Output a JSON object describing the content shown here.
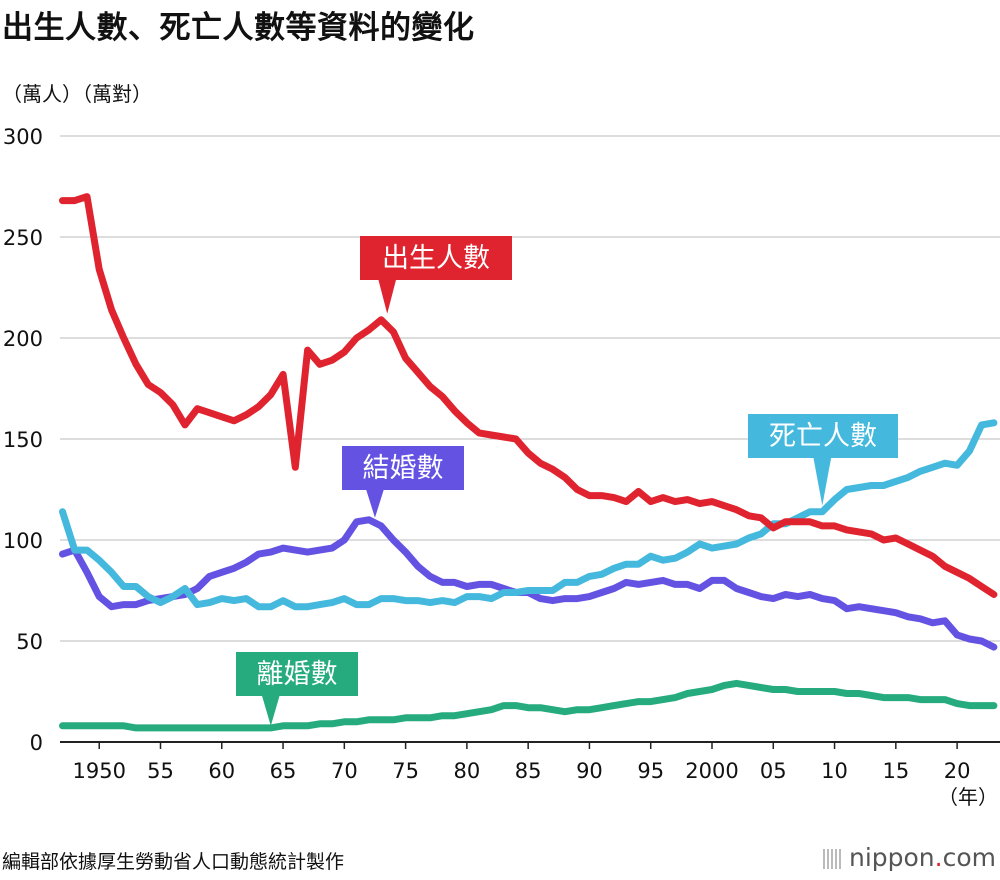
{
  "title": "出生人數、死亡人數等資料的變化",
  "units_label": "（萬人）（萬對）",
  "footer": "編輯部依據厚生勞動省人口動態統計製作",
  "logo": {
    "name": "nippon",
    "dot": ".",
    "suffix": "com",
    "icon": "nippon-logo-mark"
  },
  "chart_data": {
    "type": "line",
    "ylim": [
      0,
      300
    ],
    "yticks": [
      "300",
      "250",
      "200",
      "150",
      "100",
      "50",
      "0"
    ],
    "ytick_values": [
      300,
      250,
      200,
      150,
      100,
      50,
      0
    ],
    "xlim": [
      1946.8,
      2023.5
    ],
    "xticks": [
      {
        "label": "1950",
        "year": 1950
      },
      {
        "label": "55",
        "year": 1955
      },
      {
        "label": "60",
        "year": 1960
      },
      {
        "label": "65",
        "year": 1965
      },
      {
        "label": "70",
        "year": 1970
      },
      {
        "label": "75",
        "year": 1975
      },
      {
        "label": "80",
        "year": 1980
      },
      {
        "label": "85",
        "year": 1985
      },
      {
        "label": "90",
        "year": 1990
      },
      {
        "label": "95",
        "year": 1995
      },
      {
        "label": "2000",
        "year": 2000
      },
      {
        "label": "05",
        "year": 2005
      },
      {
        "label": "10",
        "year": 2010
      },
      {
        "label": "15",
        "year": 2015
      },
      {
        "label": "20",
        "year": 2020
      }
    ],
    "xunit": "（年）",
    "x": [
      1947,
      1948,
      1949,
      1950,
      1951,
      1952,
      1953,
      1954,
      1955,
      1956,
      1957,
      1958,
      1959,
      1960,
      1961,
      1962,
      1963,
      1964,
      1965,
      1966,
      1967,
      1968,
      1969,
      1970,
      1971,
      1972,
      1973,
      1974,
      1975,
      1976,
      1977,
      1978,
      1979,
      1980,
      1981,
      1982,
      1983,
      1984,
      1985,
      1986,
      1987,
      1988,
      1989,
      1990,
      1991,
      1992,
      1993,
      1994,
      1995,
      1996,
      1997,
      1998,
      1999,
      2000,
      2001,
      2002,
      2003,
      2004,
      2005,
      2006,
      2007,
      2008,
      2009,
      2010,
      2011,
      2012,
      2013,
      2014,
      2015,
      2016,
      2017,
      2018,
      2019,
      2020,
      2021,
      2022,
      2023
    ],
    "series": [
      {
        "name": "出生人數",
        "color": "#e0242f",
        "values": [
          268,
          268,
          270,
          234,
          214,
          200,
          187,
          177,
          173,
          167,
          157,
          165,
          163,
          161,
          159,
          162,
          166,
          172,
          182,
          136,
          194,
          187,
          189,
          193,
          200,
          204,
          209,
          203,
          190,
          183,
          176,
          171,
          164,
          158,
          153,
          152,
          151,
          150,
          143,
          138,
          135,
          131,
          125,
          122,
          122,
          121,
          119,
          124,
          119,
          121,
          119,
          120,
          118,
          119,
          117,
          115,
          112,
          111,
          106,
          109,
          109,
          109,
          107,
          107,
          105,
          104,
          103,
          100,
          101,
          98,
          95,
          92,
          87,
          84,
          81,
          77,
          73
        ]
      },
      {
        "name": "死亡人數",
        "color": "#45b9dd",
        "values": [
          114,
          95,
          95,
          90,
          84,
          77,
          77,
          72,
          69,
          72,
          76,
          68,
          69,
          71,
          70,
          71,
          67,
          67,
          70,
          67,
          67,
          68,
          69,
          71,
          68,
          68,
          71,
          71,
          70,
          70,
          69,
          70,
          69,
          72,
          72,
          71,
          74,
          74,
          75,
          75,
          75,
          79,
          79,
          82,
          83,
          86,
          88,
          88,
          92,
          90,
          91,
          94,
          98,
          96,
          97,
          98,
          101,
          103,
          108,
          108,
          111,
          114,
          114,
          120,
          125,
          126,
          127,
          127,
          129,
          131,
          134,
          136,
          138,
          137,
          144,
          157,
          158
        ]
      },
      {
        "name": "結婚數",
        "color": "#6453e2",
        "values": [
          93,
          95,
          84,
          72,
          67,
          68,
          68,
          70,
          71,
          72,
          73,
          76,
          82,
          84,
          86,
          89,
          93,
          94,
          96,
          95,
          94,
          95,
          96,
          100,
          109,
          110,
          107,
          100,
          94,
          87,
          82,
          79,
          79,
          77,
          78,
          78,
          76,
          74,
          74,
          71,
          70,
          71,
          71,
          72,
          74,
          76,
          79,
          78,
          79,
          80,
          78,
          78,
          76,
          80,
          80,
          76,
          74,
          72,
          71,
          73,
          72,
          73,
          71,
          70,
          66,
          67,
          66,
          65,
          64,
          62,
          61,
          59,
          60,
          53,
          51,
          50,
          47
        ]
      },
      {
        "name": "離婚數",
        "color": "#26ab7f",
        "values": [
          8,
          8,
          8,
          8,
          8,
          8,
          7,
          7,
          7,
          7,
          7,
          7,
          7,
          7,
          7,
          7,
          7,
          7,
          8,
          8,
          8,
          9,
          9,
          10,
          10,
          11,
          11,
          11,
          12,
          12,
          12,
          13,
          13,
          14,
          15,
          16,
          18,
          18,
          17,
          17,
          16,
          15,
          16,
          16,
          17,
          18,
          19,
          20,
          20,
          21,
          22,
          24,
          25,
          26,
          28,
          29,
          28,
          27,
          26,
          26,
          25,
          25,
          25,
          25,
          24,
          24,
          23,
          22,
          22,
          22,
          21,
          21,
          21,
          19,
          18,
          18,
          18
        ]
      }
    ],
    "annotations": [
      {
        "series": 0,
        "text": "出生人數"
      },
      {
        "series": 1,
        "text": "死亡人數"
      },
      {
        "series": 2,
        "text": "結婚數"
      },
      {
        "series": 3,
        "text": "離婚數"
      }
    ]
  }
}
